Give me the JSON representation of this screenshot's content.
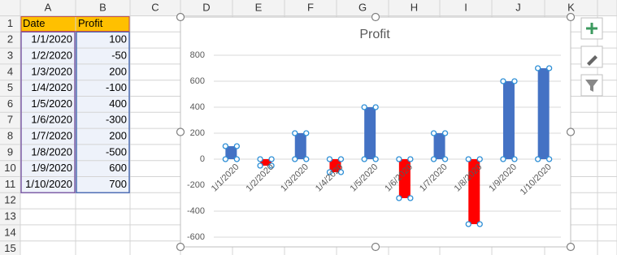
{
  "sheet": {
    "columns": [
      "A",
      "B",
      "C",
      "D",
      "E",
      "F",
      "G",
      "H",
      "I",
      "J",
      "K"
    ],
    "row_numbers": [
      1,
      2,
      3,
      4,
      5,
      6,
      7,
      8,
      9,
      10,
      11,
      12,
      13,
      14,
      15
    ],
    "header": [
      "Date",
      "Profit"
    ],
    "rows": [
      [
        "1/1/2020",
        100
      ],
      [
        "1/2/2020",
        -50
      ],
      [
        "1/3/2020",
        200
      ],
      [
        "1/4/2020",
        -100
      ],
      [
        "1/5/2020",
        400
      ],
      [
        "1/6/2020",
        -300
      ],
      [
        "1/7/2020",
        200
      ],
      [
        "1/8/2020",
        -500
      ],
      [
        "1/9/2020",
        600
      ],
      [
        "1/10/2020",
        700
      ]
    ]
  },
  "chart_data": {
    "type": "bar",
    "title": "Profit",
    "categories": [
      "1/1/2020",
      "1/2/2020",
      "1/3/2020",
      "1/4/2020",
      "1/5/2020",
      "1/6/2020",
      "1/7/2020",
      "1/8/2020",
      "1/9/2020",
      "1/10/2020"
    ],
    "values": [
      100,
      -50,
      200,
      -100,
      400,
      -300,
      200,
      -500,
      600,
      700
    ],
    "colors": {
      "positive": "#4472c4",
      "negative": "#ff0000"
    },
    "ylim": [
      -600,
      800
    ],
    "yticks": [
      -600,
      -400,
      -200,
      0,
      200,
      400,
      600,
      800
    ],
    "grid": true
  }
}
